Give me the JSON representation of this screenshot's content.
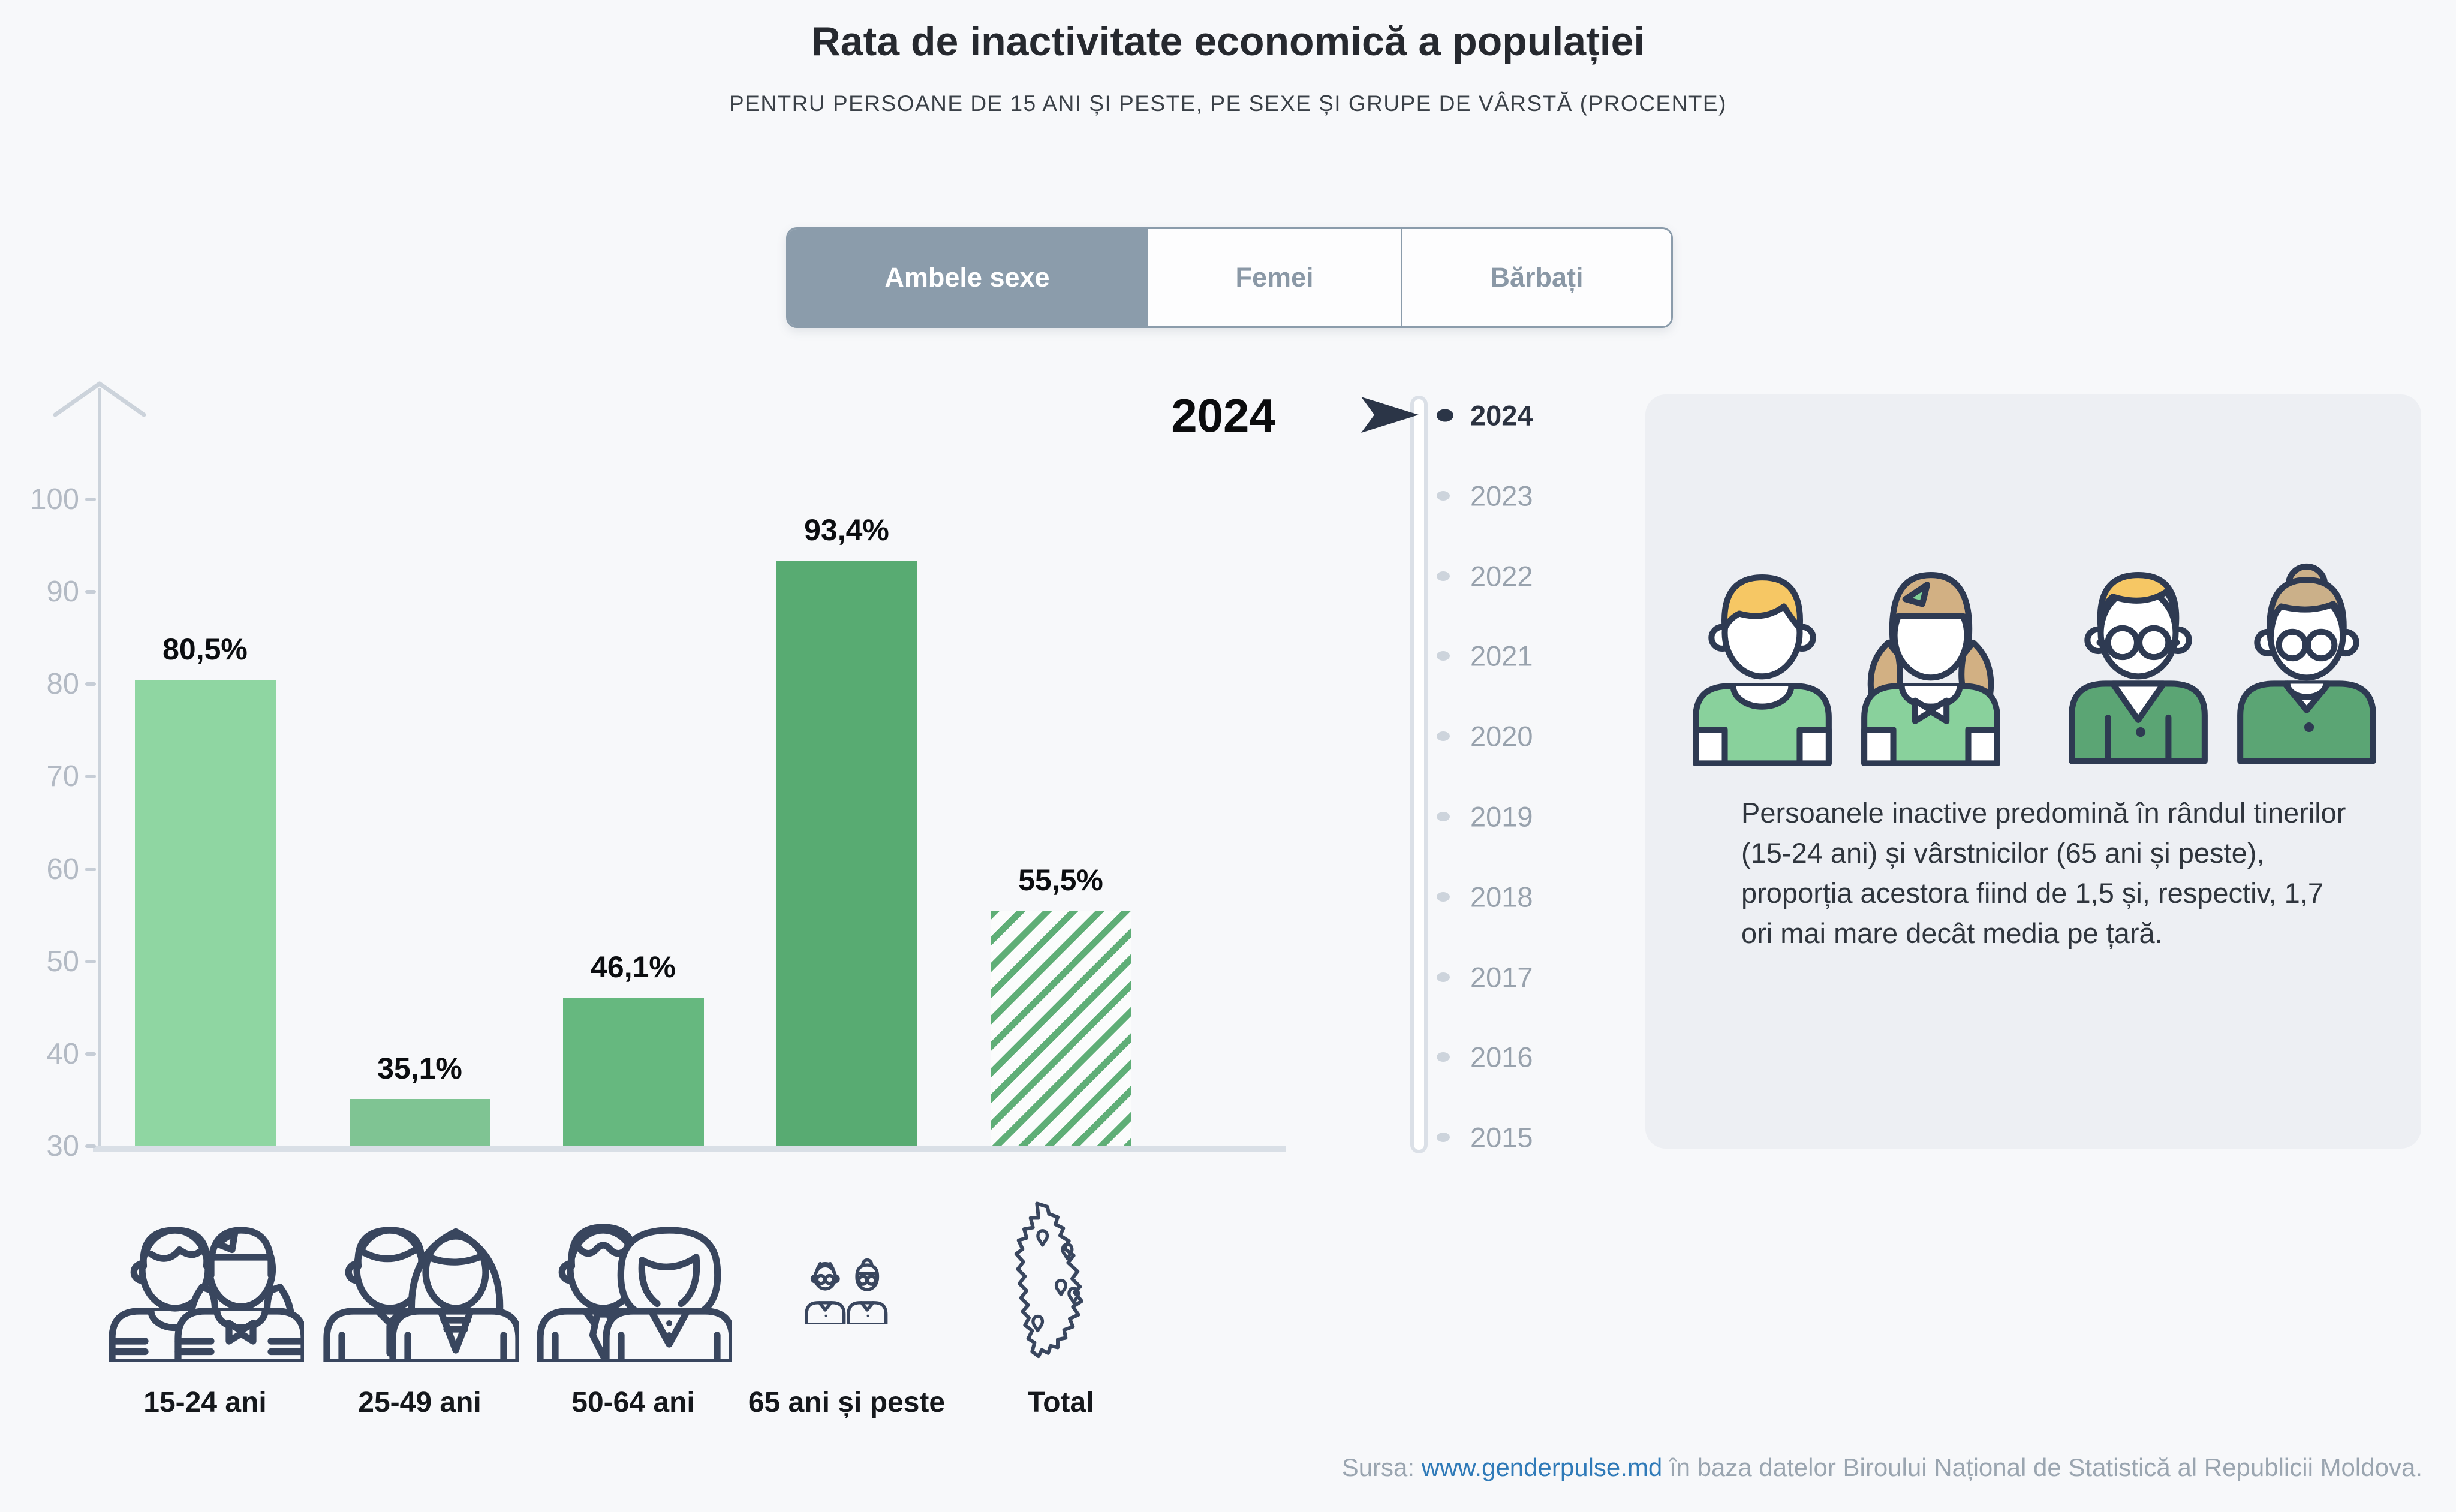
{
  "header": {
    "title": "Rata de inactivitate economică a populației",
    "subtitle": "PENTRU PERSOANE DE 15 ANI ȘI PESTE, PE SEXE ȘI GRUPE DE VÂRSTĂ (PROCENTE)"
  },
  "tabs": [
    {
      "label": "Ambele sexe",
      "active": true
    },
    {
      "label": "Femei",
      "active": false
    },
    {
      "label": "Bărbați",
      "active": false
    }
  ],
  "big_year_label": "2024",
  "chart_data": {
    "type": "bar",
    "title": "Rata de inactivitate economică a populației",
    "subtitle": "Pentru persoane de 15 ani și peste, pe sexe și grupe de vârstă (procente)",
    "selected_series": "Ambele sexe",
    "year": "2024",
    "unit": "%",
    "categories": [
      "15-24 ani",
      "25-49 ani",
      "50-64 ani",
      "65 ani și peste",
      "Total"
    ],
    "values": [
      80.5,
      35.1,
      46.1,
      93.4,
      55.5
    ],
    "value_labels": [
      "80,5%",
      "35,1%",
      "46,1%",
      "93,4%",
      "55,5%"
    ],
    "ylim": [
      30,
      100
    ],
    "yticks": [
      30,
      40,
      50,
      60,
      70,
      80,
      90,
      100
    ],
    "xlabel": "",
    "ylabel": "",
    "grid": false,
    "legend": false,
    "bar_colors": [
      "#8fd6a2",
      "#7fc493",
      "#66b87f",
      "#58ab72",
      "hatch"
    ],
    "hatch_color": "#5fae77",
    "total_bar_style": "diagonal-hatch"
  },
  "timeline": {
    "selected": "2024",
    "years": [
      "2024",
      "2023",
      "2022",
      "2021",
      "2020",
      "2019",
      "2018",
      "2017",
      "2016",
      "2015"
    ]
  },
  "panel": {
    "text": "Persoanele inactive predomină în rândul tinerilor (15-24 ani) și vârstnicilor (65 ani și peste), proporția acestora fiind de 1,5 și, respectiv, 1,7 ori mai mare decât media pe țară."
  },
  "footer": {
    "prefix": "Sursa: ",
    "link": "www.genderpulse.md",
    "suffix": " în baza datelor Biroului Național de Statistică al Republicii Moldova."
  },
  "colors": {
    "background": "#f7f8fa",
    "tab_active_bg": "#8b9cab",
    "navy": "#2b3547",
    "axis_gray": "#ccd3db",
    "year_gray": "#98a2ad",
    "panel_bg": "#edeff3",
    "link_blue": "#2f7ab8",
    "bar_green_light": "#8fd6a2",
    "bar_green_dark": "#58ab72"
  },
  "icons": [
    {
      "name": "young-pair-icon",
      "label": "15-24 ani"
    },
    {
      "name": "adult-pair-icon",
      "label": "25-49 ani"
    },
    {
      "name": "middle-age-pair-icon",
      "label": "50-64 ani"
    },
    {
      "name": "elderly-pair-icon",
      "label": "65 ani și peste"
    },
    {
      "name": "moldova-map-icon",
      "label": "Total"
    }
  ]
}
